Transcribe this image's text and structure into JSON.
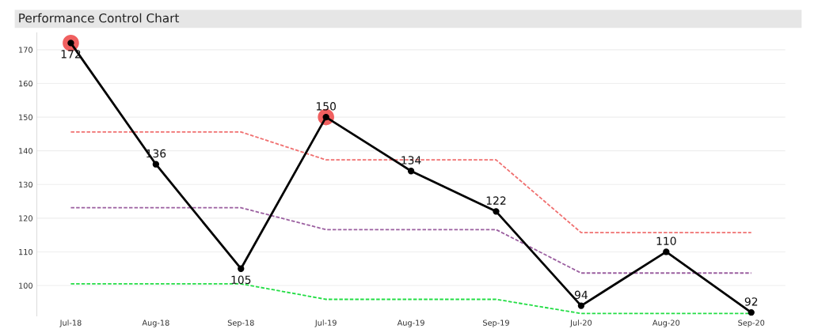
{
  "chart_data": {
    "type": "line",
    "title": "Performance Control Chart",
    "categories": [
      "Jul-18",
      "Aug-18",
      "Sep-18",
      "Jul-19",
      "Aug-19",
      "Sep-19",
      "Jul-20",
      "Aug-20",
      "Sep-20"
    ],
    "series": [
      {
        "type": "line",
        "color": "#f07070",
        "line_style": "dashed",
        "marker": "none",
        "values": [
          145.6,
          145.6,
          145.6,
          137.3,
          137.3,
          137.3,
          115.7,
          115.7,
          115.7
        ]
      },
      {
        "type": "line",
        "color": "#9b5fa0",
        "line_style": "dashed",
        "marker": "none",
        "values": [
          123.1,
          123.1,
          123.1,
          116.6,
          116.6,
          116.6,
          103.7,
          103.7,
          103.7
        ]
      },
      {
        "type": "line",
        "color": "#22dd44",
        "line_style": "dashed",
        "marker": "none",
        "values": [
          100.5,
          100.5,
          100.5,
          95.9,
          95.9,
          95.9,
          91.7,
          91.7,
          91.7
        ]
      },
      {
        "type": "scatter",
        "color": "#f06060",
        "marker": "circle",
        "values": [
          172,
          null,
          null,
          150,
          null,
          null,
          null,
          null,
          null
        ]
      },
      {
        "color": "#000000",
        "line_style": "solid",
        "marker": "circle",
        "data_labels": true,
        "values": [
          172,
          136,
          105,
          150,
          134,
          122,
          94,
          110,
          92
        ]
      }
    ],
    "ylim": [
      91,
      175
    ],
    "yticks": [
      100,
      110,
      120,
      130,
      140,
      150,
      160,
      170
    ],
    "grid": "y",
    "legend": false
  }
}
